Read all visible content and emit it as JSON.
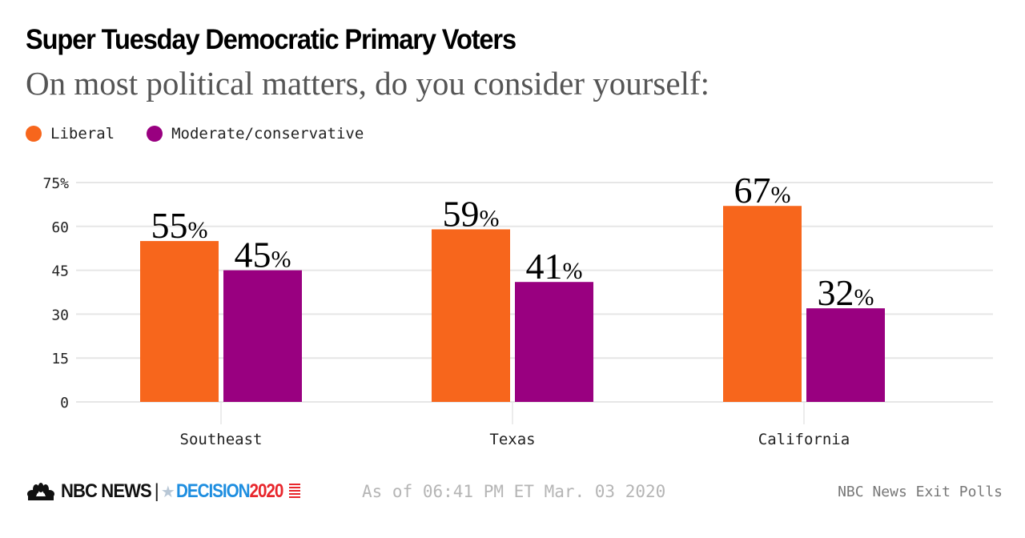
{
  "header": {
    "title": "Super Tuesday Democratic Primary Voters",
    "subtitle": "On most political matters, do you consider yourself:"
  },
  "legend": [
    {
      "label": "Liberal",
      "color": "#f7661c"
    },
    {
      "label": "Moderate/conservative",
      "color": "#990080"
    }
  ],
  "footer": {
    "brand": "NBC NEWS",
    "separator": "|",
    "decision_word": "DECISION",
    "decision_year": "2020",
    "as_of": "As of 06:41 PM ET Mar. 03 2020",
    "source": "NBC News Exit Polls"
  },
  "chart_data": {
    "type": "bar",
    "title": "Super Tuesday Democratic Primary Voters",
    "subtitle": "On most political matters, do you consider yourself:",
    "categories": [
      "Southeast",
      "Texas",
      "California"
    ],
    "series": [
      {
        "name": "Liberal",
        "color": "#f7661c",
        "values": [
          55,
          59,
          67
        ]
      },
      {
        "name": "Moderate/conservative",
        "color": "#990080",
        "values": [
          45,
          41,
          32
        ]
      }
    ],
    "value_suffix": "%",
    "xlabel": "",
    "ylabel": "",
    "ylim": [
      0,
      75
    ],
    "yticks": [
      0,
      15,
      30,
      45,
      60,
      75
    ],
    "ytick_labels": [
      "0",
      "15",
      "30",
      "45",
      "60",
      "75%"
    ],
    "grid": true,
    "legend_position": "top-left"
  }
}
